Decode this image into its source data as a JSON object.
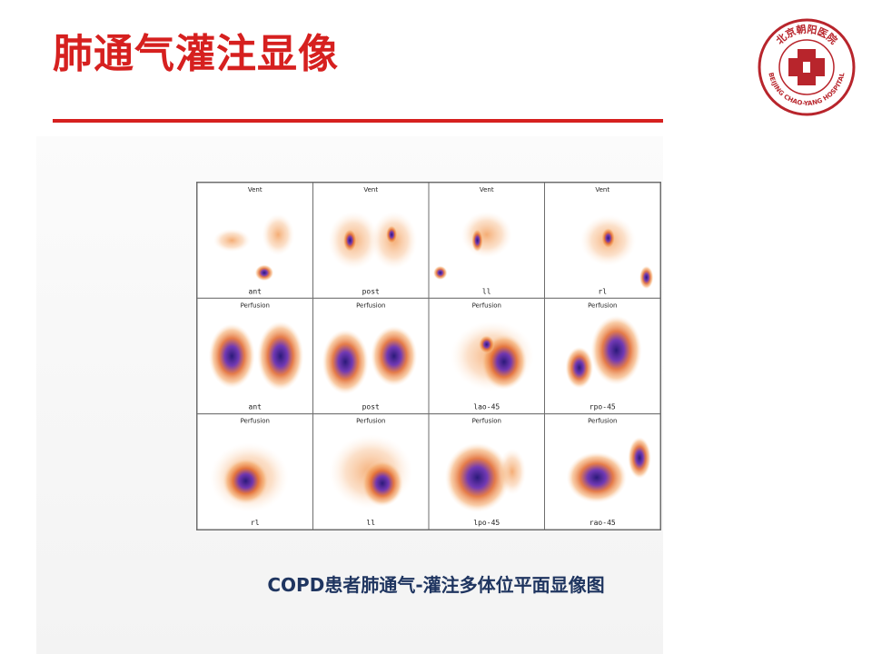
{
  "slide": {
    "title": "肺通气灌注显像",
    "caption": "COPD患者肺通气-灌注多体位平面显像图"
  },
  "logo": {
    "name": "北京朝阳医院",
    "text_en": "BEIJING CHAO-YANG HOSPITAL",
    "color": "#b8252c"
  },
  "accent_color": "#d6201f",
  "caption_color": "#1f3560",
  "grid": {
    "cells": [
      {
        "label": "Vent",
        "view": "ant"
      },
      {
        "label": "Vent",
        "view": "post"
      },
      {
        "label": "Vent",
        "view": "ll"
      },
      {
        "label": "Vent",
        "view": "rl"
      },
      {
        "label": "Perfusion",
        "view": "ant"
      },
      {
        "label": "Perfusion",
        "view": "post"
      },
      {
        "label": "Perfusion",
        "view": "lao-45"
      },
      {
        "label": "Perfusion",
        "view": "rpo-45"
      },
      {
        "label": "Perfusion",
        "view": "rl"
      },
      {
        "label": "Perfusion",
        "view": "ll"
      },
      {
        "label": "Perfusion",
        "view": "lpo-45"
      },
      {
        "label": "Perfusion",
        "view": "rao-45"
      }
    ]
  }
}
